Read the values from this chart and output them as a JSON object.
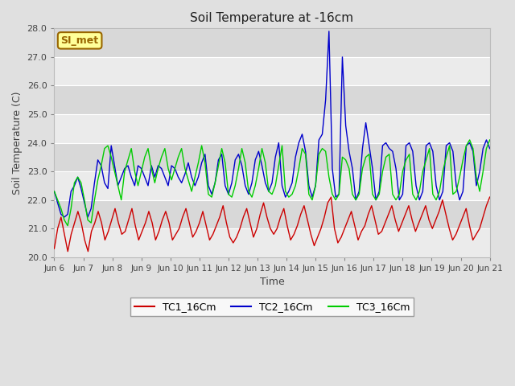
{
  "title": "Soil Temperature at -16cm",
  "xlabel": "Time",
  "ylabel": "Soil Temperature (C)",
  "ylim": [
    20.0,
    28.0
  ],
  "yticks": [
    20.0,
    21.0,
    22.0,
    23.0,
    24.0,
    25.0,
    26.0,
    27.0,
    28.0
  ],
  "xtick_labels": [
    "Jun 6",
    "Jun 7",
    "Jun 8",
    "Jun 9",
    "Jun 10",
    "Jun 11",
    "Jun 12",
    "Jun 13",
    "Jun 14",
    "Jun 15",
    "Jun 16",
    "Jun 17",
    "Jun 18",
    "Jun 19",
    "Jun 20",
    "Jun 21"
  ],
  "outer_bg": "#e0e0e0",
  "plot_bg_light": "#ebebeb",
  "plot_bg_dark": "#d8d8d8",
  "grid_color": "#ffffff",
  "legend_label": "SI_met",
  "legend_bg": "#ffff99",
  "legend_border": "#996600",
  "series": [
    {
      "name": "TC1_16Cm",
      "color": "#cc0000"
    },
    {
      "name": "TC2_16Cm",
      "color": "#0000cc"
    },
    {
      "name": "TC3_16Cm",
      "color": "#00cc00"
    }
  ],
  "TC1_data": [
    20.3,
    21.0,
    21.4,
    20.8,
    20.2,
    20.8,
    21.2,
    21.6,
    21.2,
    20.6,
    20.2,
    20.9,
    21.2,
    21.6,
    21.2,
    20.6,
    20.9,
    21.3,
    21.7,
    21.2,
    20.8,
    20.9,
    21.3,
    21.7,
    21.1,
    20.6,
    20.9,
    21.2,
    21.6,
    21.2,
    20.6,
    20.9,
    21.3,
    21.6,
    21.2,
    20.6,
    20.8,
    21.0,
    21.4,
    21.7,
    21.2,
    20.7,
    20.9,
    21.2,
    21.6,
    21.1,
    20.6,
    20.8,
    21.1,
    21.4,
    21.8,
    21.2,
    20.7,
    20.5,
    20.7,
    21.0,
    21.4,
    21.7,
    21.2,
    20.7,
    21.0,
    21.5,
    21.9,
    21.4,
    21.0,
    20.8,
    21.0,
    21.4,
    21.7,
    21.1,
    20.6,
    20.8,
    21.1,
    21.5,
    21.8,
    21.3,
    20.8,
    20.4,
    20.7,
    21.0,
    21.4,
    21.9,
    22.1,
    21.0,
    20.5,
    20.7,
    21.0,
    21.3,
    21.6,
    21.1,
    20.6,
    20.9,
    21.1,
    21.5,
    21.8,
    21.3,
    20.8,
    20.9,
    21.2,
    21.5,
    21.8,
    21.3,
    20.9,
    21.2,
    21.5,
    21.8,
    21.3,
    20.9,
    21.2,
    21.5,
    21.8,
    21.3,
    21.0,
    21.3,
    21.6,
    22.0,
    21.5,
    21.0,
    20.6,
    20.8,
    21.1,
    21.4,
    21.7,
    21.1,
    20.6,
    20.8,
    21.0,
    21.4,
    21.8,
    22.1
  ],
  "TC2_data": [
    22.3,
    21.9,
    21.5,
    21.4,
    21.5,
    22.3,
    22.5,
    22.8,
    22.4,
    21.9,
    21.4,
    21.7,
    22.6,
    23.4,
    23.2,
    22.6,
    22.4,
    23.9,
    23.2,
    22.5,
    22.8,
    23.1,
    23.2,
    22.8,
    22.5,
    23.2,
    23.1,
    22.8,
    22.5,
    23.2,
    22.8,
    23.2,
    23.1,
    22.8,
    22.5,
    23.2,
    23.1,
    22.8,
    22.6,
    22.9,
    23.3,
    22.8,
    22.5,
    22.8,
    23.3,
    23.6,
    22.5,
    22.2,
    22.6,
    23.4,
    23.6,
    22.5,
    22.2,
    22.6,
    23.4,
    23.6,
    23.2,
    22.5,
    22.2,
    22.6,
    23.4,
    23.7,
    23.2,
    22.6,
    22.3,
    22.6,
    23.5,
    24.0,
    22.5,
    22.1,
    22.3,
    22.6,
    23.5,
    24.0,
    24.3,
    23.7,
    22.5,
    22.1,
    22.5,
    24.1,
    24.3,
    25.5,
    27.9,
    23.1,
    22.1,
    22.2,
    27.0,
    24.6,
    23.7,
    23.1,
    22.0,
    22.3,
    23.8,
    24.7,
    23.9,
    23.1,
    22.0,
    22.3,
    23.9,
    24.0,
    23.8,
    23.7,
    23.1,
    22.0,
    22.2,
    23.9,
    24.0,
    23.7,
    22.5,
    22.0,
    22.3,
    23.9,
    24.0,
    23.7,
    22.5,
    22.0,
    22.3,
    23.9,
    24.0,
    23.7,
    22.5,
    22.0,
    22.3,
    23.9,
    24.0,
    23.7,
    22.5,
    23.0,
    23.8,
    24.1,
    23.8
  ],
  "TC3_data": [
    22.3,
    22.0,
    21.7,
    21.3,
    21.1,
    21.7,
    22.6,
    22.8,
    22.6,
    22.0,
    21.3,
    21.2,
    22.0,
    22.7,
    23.2,
    23.8,
    23.9,
    23.5,
    23.0,
    22.5,
    22.0,
    23.0,
    23.4,
    23.8,
    23.0,
    22.5,
    23.0,
    23.5,
    23.8,
    23.1,
    22.6,
    23.1,
    23.5,
    23.8,
    23.1,
    22.7,
    23.1,
    23.5,
    23.8,
    23.1,
    22.7,
    22.3,
    22.8,
    23.3,
    23.9,
    23.3,
    22.2,
    22.1,
    22.6,
    23.2,
    23.8,
    23.3,
    22.2,
    22.1,
    22.5,
    23.1,
    23.8,
    23.3,
    22.3,
    22.1,
    22.5,
    23.1,
    23.8,
    23.3,
    22.3,
    22.2,
    22.5,
    23.2,
    23.9,
    22.3,
    22.1,
    22.2,
    22.5,
    23.1,
    23.8,
    23.6,
    22.2,
    22.0,
    22.5,
    23.6,
    23.8,
    23.7,
    22.8,
    22.2,
    22.0,
    22.2,
    23.5,
    23.4,
    23.1,
    22.2,
    22.0,
    22.2,
    23.1,
    23.5,
    23.6,
    22.2,
    22.0,
    22.2,
    23.0,
    23.5,
    23.6,
    22.2,
    22.0,
    22.2,
    23.0,
    23.4,
    23.6,
    22.2,
    22.0,
    22.3,
    23.0,
    23.4,
    23.8,
    22.2,
    22.0,
    22.3,
    23.0,
    23.5,
    23.9,
    22.2,
    22.3,
    22.8,
    23.4,
    23.9,
    24.1,
    23.8,
    22.8,
    22.3,
    23.0,
    23.8,
    24.1
  ]
}
